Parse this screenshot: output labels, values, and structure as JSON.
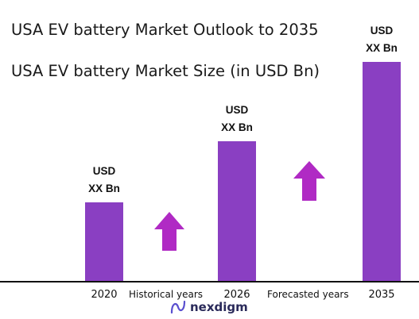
{
  "chart_data": {
    "type": "bar",
    "title": "USA EV battery Market Outlook to 2035",
    "subtitle": "USA EV battery Market Size (in USD Bn)",
    "categories": [
      "2020",
      "2026",
      "2035"
    ],
    "values": [
      100,
      177,
      277
    ],
    "data_labels": [
      [
        "USD",
        "XX Bn"
      ],
      [
        "USD",
        "XX Bn"
      ],
      [
        "USD",
        "XX Bn"
      ]
    ],
    "annotations": [
      "Historical years",
      "Forecasted years"
    ],
    "ylim": [
      0,
      280
    ],
    "grid": false,
    "bar_color": "#8a3fc2",
    "arrow_color": "#b02ac4"
  },
  "brand": {
    "name": "nexdigm"
  }
}
